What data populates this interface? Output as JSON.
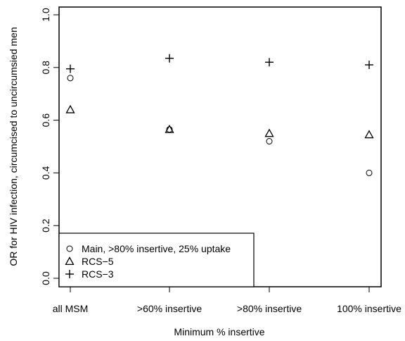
{
  "chart_data": {
    "type": "scatter",
    "xlabel": "Minimum % insertive",
    "ylabel": "OR for HIV infection, circumcised to uncircumsied men",
    "categories": [
      "all MSM",
      ">60% insertive",
      ">80% insertive",
      "100% insertive"
    ],
    "ylim": [
      0.0,
      1.0
    ],
    "yticks": [
      "0.0",
      "0.2",
      "0.4",
      "0.6",
      "0.8",
      "1.0"
    ],
    "legend_position": "bottom-left",
    "grid": false,
    "series": [
      {
        "name": "Main, >80% insertive, 25% uptake",
        "marker": "circle",
        "values": [
          0.76,
          0.565,
          0.52,
          0.4
        ]
      },
      {
        "name": "RCS−5",
        "marker": "triangle",
        "values": [
          0.64,
          0.565,
          0.55,
          0.545
        ]
      },
      {
        "name": "RCS−3",
        "marker": "plus",
        "values": [
          0.795,
          0.835,
          0.82,
          0.81
        ]
      }
    ]
  }
}
